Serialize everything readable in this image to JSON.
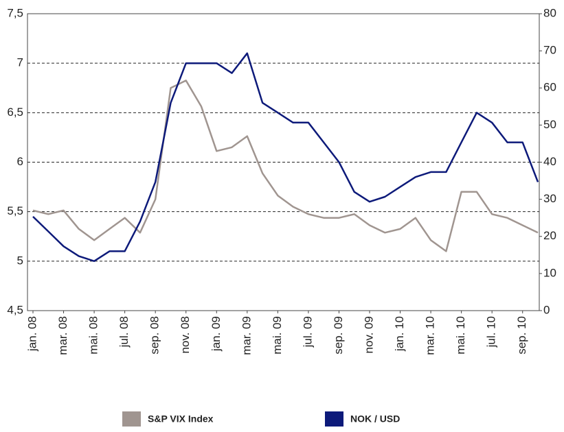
{
  "chart_data": {
    "type": "line",
    "categories": [
      "jan. 08",
      null,
      "mar. 08",
      null,
      "mai. 08",
      null,
      "jul. 08",
      null,
      "sep. 08",
      null,
      "nov. 08",
      null,
      "jan. 09",
      null,
      "mar. 09",
      null,
      "mai. 09",
      null,
      "jul. 09",
      null,
      "sep. 09",
      null,
      "nov. 09",
      null,
      "jan. 10",
      null,
      "mar. 10",
      null,
      "mai. 10",
      null,
      "jul. 10",
      null,
      "sep. 10",
      null
    ],
    "series": [
      {
        "name": "S&P VIX Index",
        "color": "#a09590",
        "axis": "y2",
        "values": [
          27,
          26,
          27,
          22,
          19,
          22,
          25,
          21,
          30,
          60,
          62,
          55,
          43,
          44,
          47,
          37,
          31,
          28,
          26,
          25,
          25,
          26,
          23,
          21,
          22,
          25,
          19,
          16,
          32,
          32,
          26,
          25,
          23,
          21
        ]
      },
      {
        "name": "NOK / USD",
        "color": "#0d1a7a",
        "values": [
          5.45,
          5.3,
          5.15,
          5.05,
          5.0,
          5.1,
          5.1,
          5.4,
          5.8,
          6.6,
          7.0,
          7.0,
          7.0,
          6.9,
          7.1,
          6.6,
          6.5,
          6.4,
          6.4,
          6.2,
          6.0,
          5.7,
          5.6,
          5.65,
          5.75,
          5.85,
          5.9,
          5.9,
          6.2,
          6.5,
          6.4,
          6.2,
          6.2,
          5.8
        ]
      }
    ],
    "ylim": [
      4.5,
      7.5
    ],
    "yticks": [
      {
        "value": 4.5,
        "label": "4,5"
      },
      5,
      {
        "value": 5.5,
        "label": "5,5"
      },
      6,
      {
        "value": 6.5,
        "label": "6,5"
      },
      7,
      {
        "value": 7.5,
        "label": "7,5"
      }
    ],
    "y2lim": [
      0,
      80
    ],
    "y2ticks": [
      0,
      10,
      20,
      30,
      40,
      50,
      60,
      70,
      80
    ],
    "grid": true
  }
}
